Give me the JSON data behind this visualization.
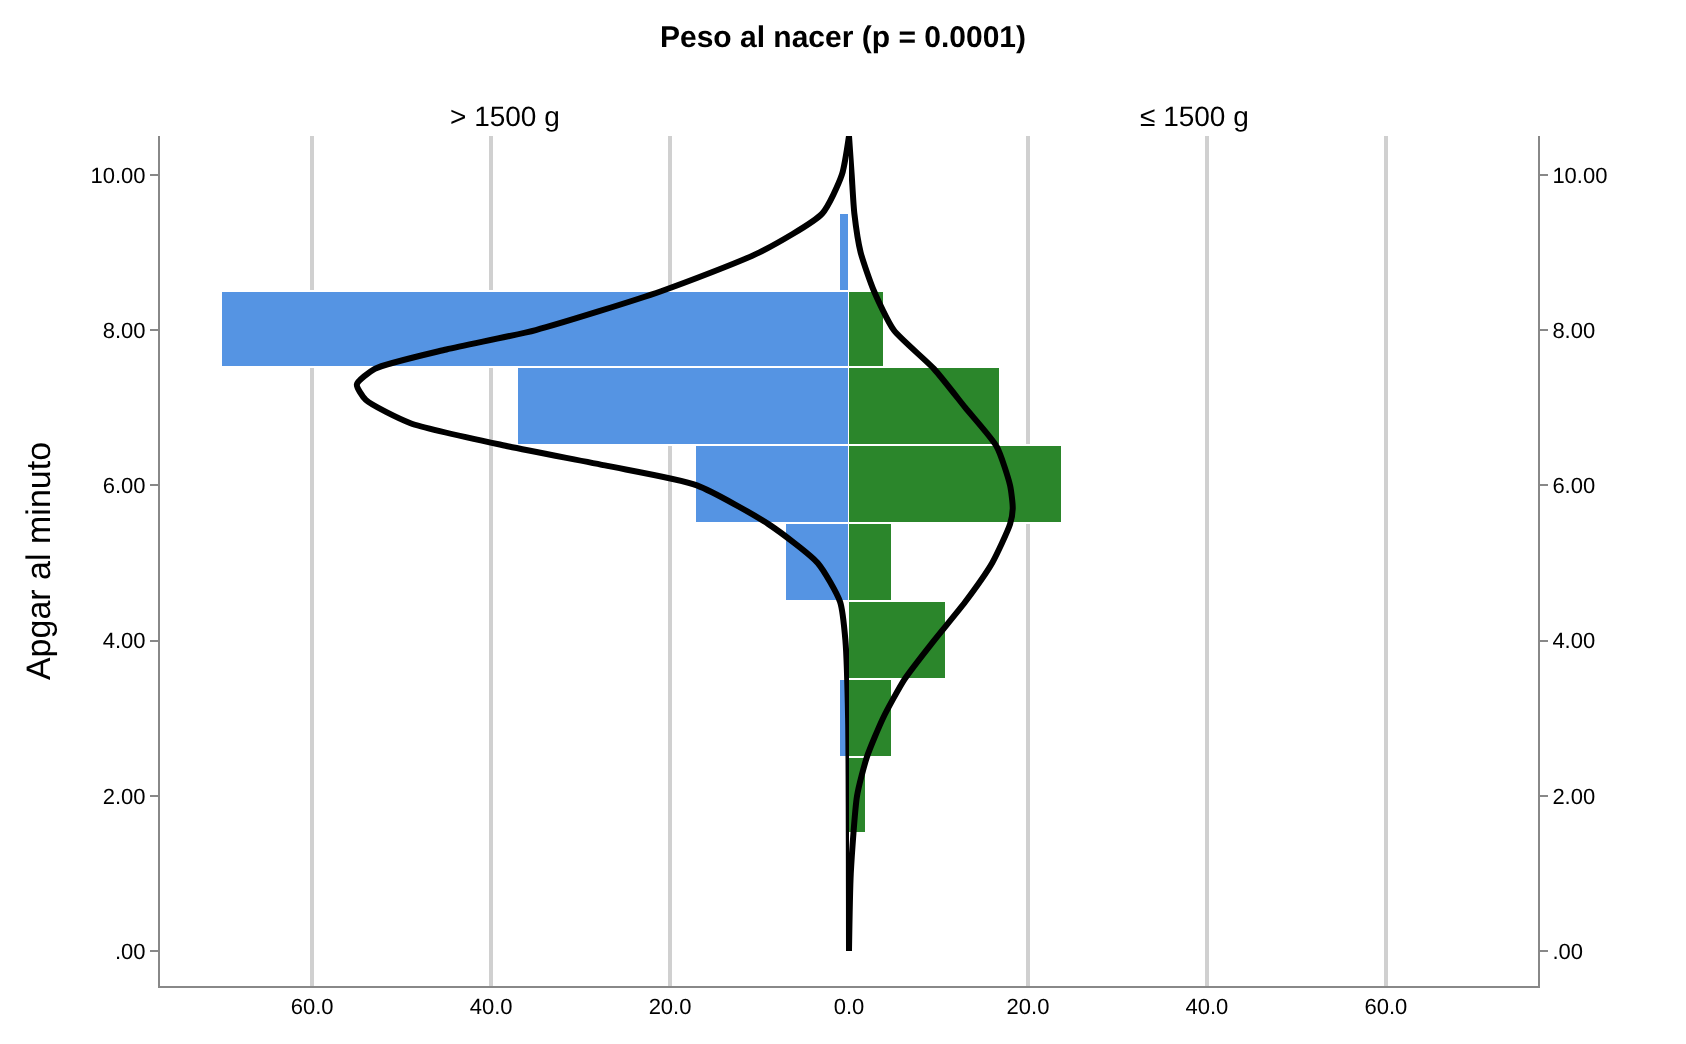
{
  "chart_data": [
    {
      "type": "histogram",
      "title": "Peso al nacer (p = 0.0001)",
      "subtitle": "> 1500 g",
      "ylabel": "Apgar al minuto",
      "orientation": "horizontal",
      "bins": [
        2.5,
        3.5,
        4.5,
        5.5,
        6.5,
        7.5,
        8.5,
        9.5
      ],
      "series": [
        {
          "color": "#5594e3",
          "values": [
            1,
            0,
            7,
            17,
            37,
            70,
            1
          ]
        },
        {
          "type": "line",
          "color": "#000000",
          "x": [
            0,
            3,
            4,
            4.5,
            5,
            5.5,
            6,
            6.25,
            6.5,
            6.8,
            7.1,
            7.3,
            7.5,
            7.75,
            8,
            8.5,
            9,
            9.5,
            10,
            10.5
          ],
          "values": [
            0,
            0.1,
            0.4,
            1,
            3.5,
            9,
            17,
            27,
            38,
            49,
            54,
            55,
            53,
            45,
            35,
            21,
            10,
            3,
            0.8,
            0
          ]
        }
      ],
      "xlim": [
        77,
        0
      ],
      "xticks": [
        {
          "value": 20,
          "label": "20.0"
        },
        {
          "value": 40,
          "label": "40.0"
        },
        {
          "value": 60,
          "label": "60.0"
        }
      ],
      "ylim": [
        -0.45,
        10.5
      ],
      "yticks": [
        {
          "value": 0,
          "label": ".00"
        },
        {
          "value": 2,
          "label": "2.00"
        },
        {
          "value": 4,
          "label": "4.00"
        },
        {
          "value": 6,
          "label": "6.00"
        },
        {
          "value": 8,
          "label": "8.00"
        },
        {
          "value": 10,
          "label": "10.00"
        }
      ],
      "grid": "x"
    },
    {
      "type": "histogram",
      "subtitle": "≤ 1500 g",
      "orientation": "horizontal",
      "bins": [
        1.5,
        2.5,
        3.5,
        4.5,
        5.5,
        6.5,
        7.5,
        8.5
      ],
      "series": [
        {
          "color": "#2b862b",
          "values": [
            2,
            5,
            11,
            5,
            24,
            17,
            4
          ]
        },
        {
          "type": "line",
          "color": "#000000",
          "x": [
            0,
            1,
            2,
            2.5,
            3,
            3.5,
            4,
            4.5,
            5,
            5.5,
            5.7,
            6,
            6.5,
            7,
            7.5,
            8,
            8.5,
            9,
            9.5,
            10,
            10.5
          ],
          "values": [
            0,
            0.2,
            0.9,
            2,
            3.8,
            6.2,
            9.5,
            13,
            16,
            18,
            18.3,
            18,
            16.5,
            13,
            9.5,
            5,
            2.8,
            1.3,
            0.6,
            0.3,
            0
          ]
        }
      ],
      "xlim": [
        0,
        77
      ],
      "xticks": [
        {
          "value": 0,
          "label": "0.0"
        },
        {
          "value": 20,
          "label": "20.0"
        },
        {
          "value": 40,
          "label": "40.0"
        },
        {
          "value": 60,
          "label": "60.0"
        }
      ],
      "ylim": [
        -0.45,
        10.5
      ],
      "yticks": [
        {
          "value": 0,
          "label": ".00"
        },
        {
          "value": 2,
          "label": "2.00"
        },
        {
          "value": 4,
          "label": "4.00"
        },
        {
          "value": 6,
          "label": "6.00"
        },
        {
          "value": 8,
          "label": "8.00"
        },
        {
          "value": 10,
          "label": "10.00"
        }
      ],
      "grid": "x"
    }
  ]
}
